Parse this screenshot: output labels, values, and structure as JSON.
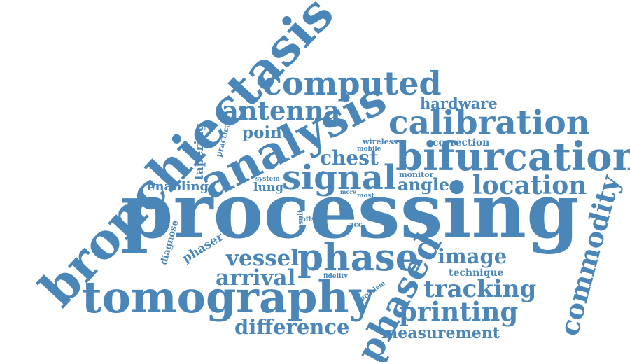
{
  "cloud": {
    "color": "#4a86b8",
    "words": {
      "processing": "processing",
      "bronchiectasis": "bronchiectasis",
      "analysis": "analysis",
      "tomography": "tomography",
      "bifurcation": "bifurcation",
      "phase": "phase",
      "phased": "phased",
      "calibration": "calibration",
      "computed": "computed",
      "signal": "signal",
      "commodity": "commodity",
      "antenna": "antenna",
      "location": "location",
      "printing": "printing",
      "tracking": "tracking",
      "vessel": "vessel",
      "arrival": "arrival",
      "difference": "difference",
      "image": "image",
      "chest": "chest",
      "angle": "angle",
      "point": "point",
      "measurement": "measurement",
      "hardware": "hardware",
      "enabling": "enabling",
      "lung": "lung",
      "phaser": "phaser",
      "tapering": "tapering",
      "correction": "correction",
      "technique": "technique",
      "diagnose": "diagnose",
      "practical": "practical",
      "wireless": "wireless",
      "mobile": "mobile",
      "monitor": "monitor",
      "system": "system",
      "result": "result",
      "offset": "offset",
      "acc": "acc",
      "more": "more",
      "most": "most",
      "fidelity": "fidelity",
      "problem": "problem"
    }
  }
}
